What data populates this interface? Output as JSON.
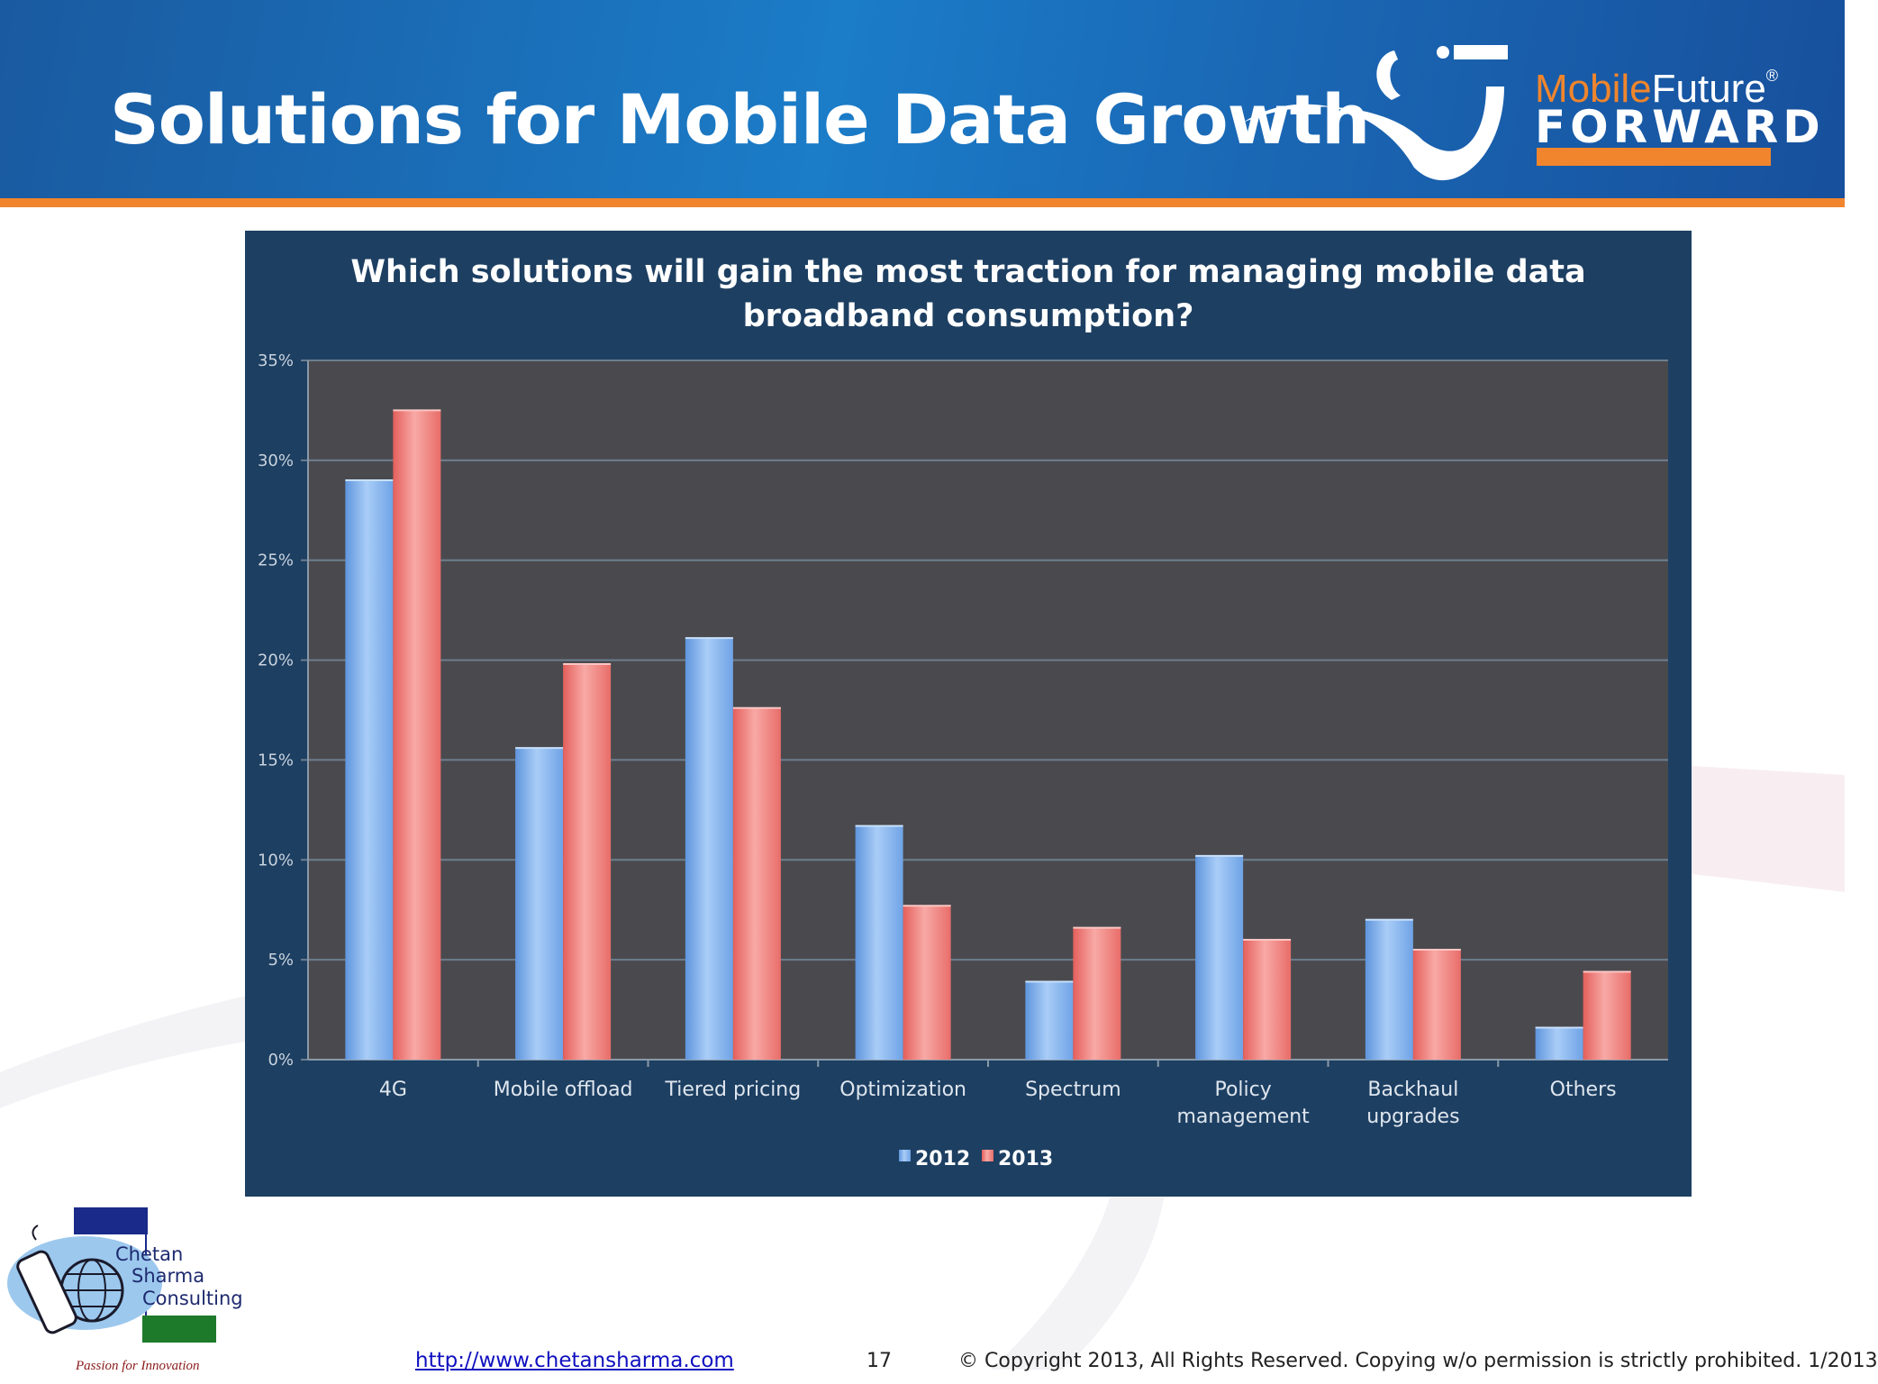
{
  "slide": {
    "title": "Solutions for Mobile Data Growth",
    "brand": {
      "word1": "Mobile",
      "word2": "Future",
      "word3": "FORWARD",
      "mark": "®"
    },
    "footer": {
      "url": "http://www.chetansharma.com",
      "page_number": "17",
      "copyright": "© Copyright 2013, All Rights Reserved. Copying w/o permission is strictly prohibited. 1/2013"
    },
    "logo": {
      "line1": "Chetan",
      "line2": "Sharma",
      "line3": "Consulting",
      "tagline": "Passion for Innovation"
    }
  },
  "colors": {
    "header_blue": "#1b7cc8",
    "accent_orange": "#f0852d",
    "panel_navy": "#1d3f62",
    "plot_gray": "#4a4a4e",
    "series_2012": "#8fbcf2",
    "series_2013": "#f28a86"
  },
  "chart_data": {
    "type": "bar",
    "title": "Which solutions will gain the most traction for managing mobile data broadband consumption?",
    "title_lines": [
      "Which solutions will gain the most traction for managing mobile data",
      "broadband consumption?"
    ],
    "categories": [
      "4G",
      "Mobile offload",
      "Tiered pricing",
      "Optimization",
      "Spectrum",
      "Policy management",
      "Backhaul upgrades",
      "Others"
    ],
    "category_label_lines": [
      [
        "4G"
      ],
      [
        "Mobile offload"
      ],
      [
        "Tiered pricing"
      ],
      [
        "Optimization"
      ],
      [
        "Spectrum"
      ],
      [
        "Policy",
        "management"
      ],
      [
        "Backhaul",
        "upgrades"
      ],
      [
        "Others"
      ]
    ],
    "series": [
      {
        "name": "2012",
        "values": [
          29.0,
          15.6,
          21.1,
          11.7,
          3.9,
          10.2,
          7.0,
          1.6
        ]
      },
      {
        "name": "2013",
        "values": [
          32.5,
          19.8,
          17.6,
          7.7,
          6.6,
          6.0,
          5.5,
          4.4
        ]
      }
    ],
    "ylim": [
      0,
      35
    ],
    "yticks": [
      0,
      5,
      10,
      15,
      20,
      25,
      30,
      35
    ],
    "ytick_labels": [
      "0%",
      "5%",
      "10%",
      "15%",
      "20%",
      "25%",
      "30%",
      "35%"
    ],
    "xlabel": "",
    "ylabel": "",
    "grid": true,
    "legend_position": "bottom-center"
  }
}
